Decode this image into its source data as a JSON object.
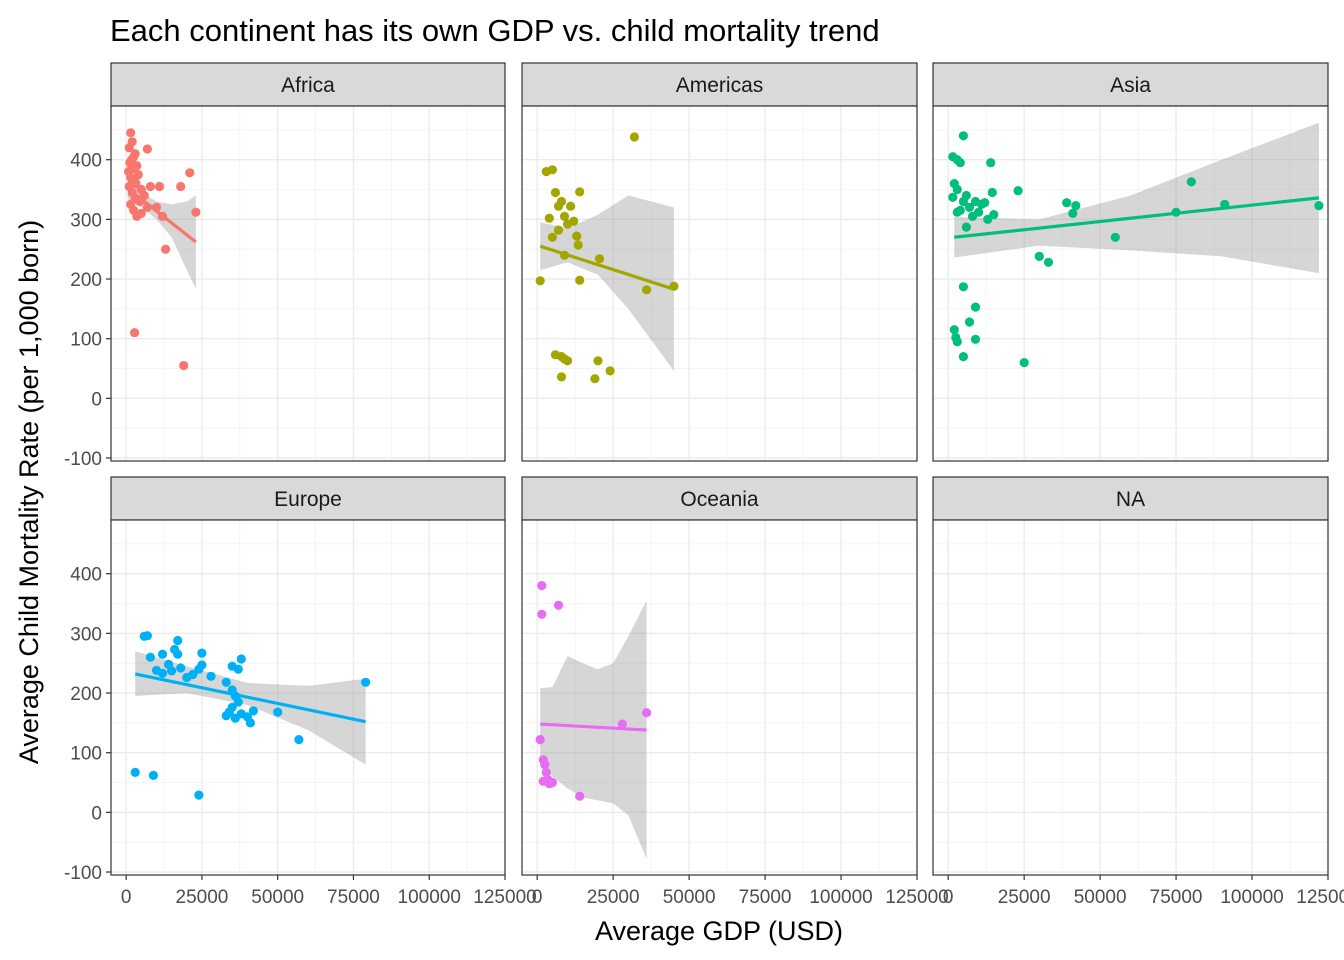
{
  "chart_data": {
    "type": "scatter",
    "title": "Each continent has its own GDP vs. child mortality trend",
    "xlabel": "Average GDP (USD)",
    "ylabel": "Average Child Mortality Rate (per 1,000 born)",
    "xlim": [
      -5000,
      125000
    ],
    "ylim": [
      -105,
      490
    ],
    "x_ticks": [
      0,
      25000,
      50000,
      75000,
      100000,
      125000
    ],
    "x_tick_labels": [
      "0",
      "25000",
      "50000",
      "75000",
      "100000",
      "125000"
    ],
    "y_ticks": [
      -100,
      0,
      100,
      200,
      300,
      400
    ],
    "y_tick_labels": [
      "-100",
      "0",
      "100",
      "200",
      "300",
      "400"
    ],
    "grid": true,
    "facet_scales": "fixed",
    "panels": [
      {
        "name": "Africa",
        "color": "#F8766D",
        "points": [
          [
            1500,
            445
          ],
          [
            2000,
            430
          ],
          [
            1000,
            420
          ],
          [
            3000,
            410
          ],
          [
            2500,
            405
          ],
          [
            1800,
            400
          ],
          [
            1200,
            395
          ],
          [
            3500,
            390
          ],
          [
            2200,
            385
          ],
          [
            800,
            380
          ],
          [
            4000,
            375
          ],
          [
            1500,
            370
          ],
          [
            2800,
            365
          ],
          [
            3200,
            360
          ],
          [
            1000,
            355
          ],
          [
            5000,
            350
          ],
          [
            2000,
            345
          ],
          [
            6000,
            340
          ],
          [
            3000,
            335
          ],
          [
            4500,
            330
          ],
          [
            1500,
            325
          ],
          [
            7000,
            320
          ],
          [
            2500,
            315
          ],
          [
            5000,
            310
          ],
          [
            3500,
            305
          ],
          [
            8000,
            355
          ],
          [
            11000,
            355
          ],
          [
            7000,
            418
          ],
          [
            18000,
            355
          ],
          [
            21000,
            378
          ],
          [
            10000,
            320
          ],
          [
            12000,
            305
          ],
          [
            23000,
            312
          ],
          [
            13000,
            250
          ],
          [
            2800,
            110
          ],
          [
            19000,
            55
          ]
        ],
        "trend": {
          "x": [
            500,
            23000
          ],
          "y": [
            352,
            262
          ]
        },
        "ribbon": {
          "x": [
            500,
            5000,
            10000,
            15000,
            20000,
            23000
          ],
          "upper": [
            370,
            345,
            330,
            325,
            330,
            340
          ],
          "lower": [
            334,
            320,
            300,
            270,
            215,
            184
          ]
        }
      },
      {
        "name": "Americas",
        "color": "#A3A500",
        "points": [
          [
            3000,
            380
          ],
          [
            5000,
            383
          ],
          [
            7000,
            322
          ],
          [
            4000,
            302
          ],
          [
            9000,
            305
          ],
          [
            10000,
            292
          ],
          [
            6000,
            345
          ],
          [
            8000,
            330
          ],
          [
            12000,
            297
          ],
          [
            14000,
            346
          ],
          [
            11000,
            322
          ],
          [
            13000,
            272
          ],
          [
            5000,
            270
          ],
          [
            7000,
            282
          ],
          [
            13500,
            257
          ],
          [
            9000,
            240
          ],
          [
            20500,
            234
          ],
          [
            14000,
            198
          ],
          [
            1000,
            197
          ],
          [
            36000,
            182
          ],
          [
            45000,
            188
          ],
          [
            32000,
            438
          ],
          [
            6000,
            73
          ],
          [
            8000,
            70
          ],
          [
            9000,
            66
          ],
          [
            10000,
            63
          ],
          [
            20000,
            63
          ],
          [
            24000,
            46
          ],
          [
            8000,
            36
          ],
          [
            19000,
            33
          ]
        ],
        "trend": {
          "x": [
            1000,
            45000
          ],
          "y": [
            255,
            183
          ]
        },
        "ribbon": {
          "x": [
            1000,
            10000,
            20000,
            30000,
            45000
          ],
          "upper": [
            295,
            285,
            308,
            340,
            320
          ],
          "lower": [
            215,
            228,
            207,
            150,
            46
          ]
        }
      },
      {
        "name": "Asia",
        "color": "#00BF7D",
        "points": [
          [
            1500,
            405
          ],
          [
            3000,
            400
          ],
          [
            4000,
            395
          ],
          [
            5000,
            440
          ],
          [
            2000,
            360
          ],
          [
            3000,
            350
          ],
          [
            6000,
            340
          ],
          [
            1500,
            337
          ],
          [
            5000,
            330
          ],
          [
            4000,
            315
          ],
          [
            3000,
            312
          ],
          [
            7000,
            320
          ],
          [
            8000,
            305
          ],
          [
            9000,
            330
          ],
          [
            10000,
            312
          ],
          [
            11000,
            325
          ],
          [
            12000,
            328
          ],
          [
            15000,
            308
          ],
          [
            13000,
            300
          ],
          [
            14000,
            395
          ],
          [
            14500,
            345
          ],
          [
            23000,
            348
          ],
          [
            6000,
            287
          ],
          [
            39000,
            328
          ],
          [
            41000,
            310
          ],
          [
            42000,
            323
          ],
          [
            55000,
            270
          ],
          [
            75000,
            312
          ],
          [
            80000,
            363
          ],
          [
            91000,
            325
          ],
          [
            122000,
            323
          ],
          [
            30000,
            238
          ],
          [
            33000,
            228
          ],
          [
            5000,
            187
          ],
          [
            9000,
            153
          ],
          [
            2000,
            115
          ],
          [
            2500,
            102
          ],
          [
            3000,
            95
          ],
          [
            7000,
            128
          ],
          [
            9000,
            99
          ],
          [
            5000,
            70
          ],
          [
            25000,
            60
          ]
        ],
        "trend": {
          "x": [
            2000,
            122000
          ],
          "y": [
            270,
            336
          ]
        },
        "ribbon": {
          "x": [
            2000,
            30000,
            60000,
            90000,
            122000
          ],
          "upper": [
            304,
            300,
            340,
            400,
            462
          ],
          "lower": [
            236,
            256,
            248,
            238,
            210
          ]
        }
      },
      {
        "name": "Europe",
        "color": "#00B0F6",
        "points": [
          [
            6000,
            295
          ],
          [
            7000,
            296
          ],
          [
            17000,
            288
          ],
          [
            8000,
            260
          ],
          [
            12000,
            265
          ],
          [
            25000,
            267
          ],
          [
            16000,
            273
          ],
          [
            17000,
            265
          ],
          [
            14000,
            248
          ],
          [
            15000,
            237
          ],
          [
            18000,
            242
          ],
          [
            22000,
            231
          ],
          [
            24000,
            240
          ],
          [
            25000,
            247
          ],
          [
            10000,
            238
          ],
          [
            20000,
            226
          ],
          [
            12000,
            233
          ],
          [
            28000,
            228
          ],
          [
            35000,
            245
          ],
          [
            38000,
            257
          ],
          [
            37000,
            240
          ],
          [
            33000,
            218
          ],
          [
            35000,
            205
          ],
          [
            36000,
            195
          ],
          [
            37000,
            185
          ],
          [
            35000,
            176
          ],
          [
            34000,
            168
          ],
          [
            33000,
            162
          ],
          [
            36000,
            158
          ],
          [
            38000,
            165
          ],
          [
            40000,
            160
          ],
          [
            41000,
            150
          ],
          [
            42000,
            170
          ],
          [
            50000,
            168
          ],
          [
            57000,
            122
          ],
          [
            79000,
            218
          ],
          [
            3000,
            67
          ],
          [
            9000,
            62
          ],
          [
            24000,
            29
          ]
        ],
        "trend": {
          "x": [
            3000,
            79000
          ],
          "y": [
            232,
            152
          ]
        },
        "ribbon": {
          "x": [
            3000,
            20000,
            40000,
            60000,
            79000
          ],
          "upper": [
            270,
            245,
            217,
            212,
            224
          ],
          "lower": [
            195,
            200,
            180,
            138,
            80
          ]
        }
      },
      {
        "name": "Oceania",
        "color": "#E76BF3",
        "points": [
          [
            1500,
            380
          ],
          [
            1500,
            332
          ],
          [
            7000,
            347
          ],
          [
            1000,
            122
          ],
          [
            2000,
            88
          ],
          [
            2500,
            80
          ],
          [
            3000,
            67
          ],
          [
            3500,
            55
          ],
          [
            2000,
            52
          ],
          [
            4000,
            48
          ],
          [
            5000,
            50
          ],
          [
            14000,
            27
          ],
          [
            28000,
            148
          ],
          [
            36000,
            167
          ]
        ],
        "trend": {
          "x": [
            1000,
            36000
          ],
          "y": [
            148,
            138
          ]
        },
        "ribbon": {
          "x": [
            1000,
            5000,
            10000,
            15000,
            20000,
            25000,
            30000,
            36000
          ],
          "upper": [
            208,
            210,
            262,
            250,
            240,
            250,
            295,
            355
          ],
          "lower": [
            88,
            60,
            40,
            25,
            20,
            15,
            -5,
            -78
          ]
        }
      },
      {
        "name": "NA",
        "color": "#FF61C3",
        "points": [],
        "trend": null,
        "ribbon": null
      }
    ]
  }
}
